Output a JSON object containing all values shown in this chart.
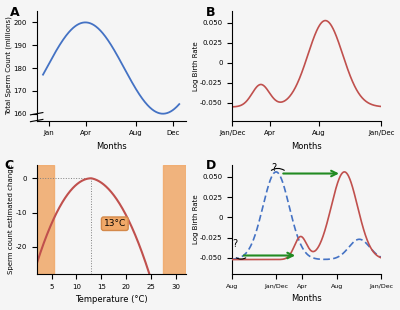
{
  "panel_A": {
    "label": "A",
    "xlabel": "Months",
    "ylabel": "Total Sperm Count (millions)",
    "xticks_pos": [
      1,
      4,
      8,
      11
    ],
    "xticks_labels": [
      "Jan",
      "Apr",
      "Aug",
      "Dec"
    ],
    "yticks": [
      160,
      170,
      180,
      190,
      200
    ],
    "ylim": [
      157,
      205
    ],
    "xlim": [
      0,
      12
    ],
    "color": "#4472C4"
  },
  "panel_B": {
    "label": "B",
    "xlabel": "Months",
    "ylabel": "Log Birth Rate",
    "xticks_pos": [
      0,
      3,
      7,
      12
    ],
    "xticks_labels": [
      "Jan/Dec",
      "Apr",
      "Aug",
      "Jan/Dec"
    ],
    "yticks": [
      -0.05,
      -0.025,
      0.0,
      0.025,
      0.05
    ],
    "ytick_labels": [
      "-0.050",
      "-0.025",
      "0",
      "0.025",
      "0.050"
    ],
    "ylim": [
      -0.072,
      0.065
    ],
    "xlim": [
      0,
      12
    ],
    "color": "#C0504D"
  },
  "panel_C": {
    "label": "C",
    "xlabel": "Temperature (°C)",
    "ylabel": "Sperm count estimated change",
    "xticks_pos": [
      5,
      10,
      15,
      20,
      25,
      30
    ],
    "xticks_labels": [
      "5",
      "10",
      "15",
      "20",
      "25",
      "30"
    ],
    "yticks": [
      0,
      -10,
      -20
    ],
    "ytick_labels": [
      "0",
      "-10",
      "-20"
    ],
    "ylim": [
      -28,
      4
    ],
    "xlim": [
      2,
      32
    ],
    "color": "#C0504D",
    "orange_color": "#F0A868",
    "annotation": "13°C",
    "orange_left_xmin": 2,
    "orange_left_xmax": 5.5,
    "orange_right_xmin": 27.5,
    "orange_right_xmax": 32
  },
  "panel_D": {
    "label": "D",
    "xlabel": "Months",
    "ylabel": "Log Birth Rate",
    "xticks_pos": [
      0,
      5,
      8,
      12,
      17
    ],
    "xticks_labels": [
      "Aug",
      "Jan/Dec",
      "Apr",
      "Aug",
      "Jan/Dec"
    ],
    "yticks": [
      -0.05,
      -0.025,
      0.0,
      0.025,
      0.05
    ],
    "ytick_labels": [
      "-0.050",
      "-0.025",
      "0",
      "0.025",
      "0.050"
    ],
    "ylim": [
      -0.07,
      0.065
    ],
    "xlim": [
      0,
      17
    ],
    "color_red": "#C0504D",
    "color_blue": "#4472C4",
    "arrow_color": "#228B22"
  },
  "bg_color": "#F5F5F5"
}
